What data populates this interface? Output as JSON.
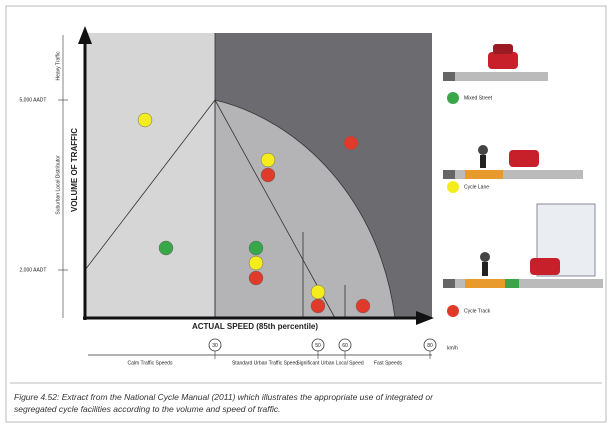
{
  "figure": {
    "axis_y": "VOLUME OF TRAFFIC",
    "axis_x": "ACTUAL SPEED (85th percentile)",
    "y_levels": [
      "5,000 AADT",
      "2,000 AADT"
    ],
    "y_bands": [
      "Heavy Traffic",
      "Suburban Local Distributor"
    ],
    "speeds": [
      "30",
      "50",
      "60",
      "80"
    ],
    "speed_unit": "km/h",
    "speed_bands": [
      "Calm Traffic Speeds",
      "Standard Urban Traffic Speed",
      "Significant Urban Local Speed",
      "Fast Speeds"
    ],
    "legend": [
      "Mixed Street",
      "Cycle Lane",
      "Cycle Track"
    ],
    "caption": "Figure 4.52: Extract from the National Cycle Manual (2011) which illustrates the appropriate use of integrated or segregated cycle facilities according to the volume and speed of traffic."
  }
}
